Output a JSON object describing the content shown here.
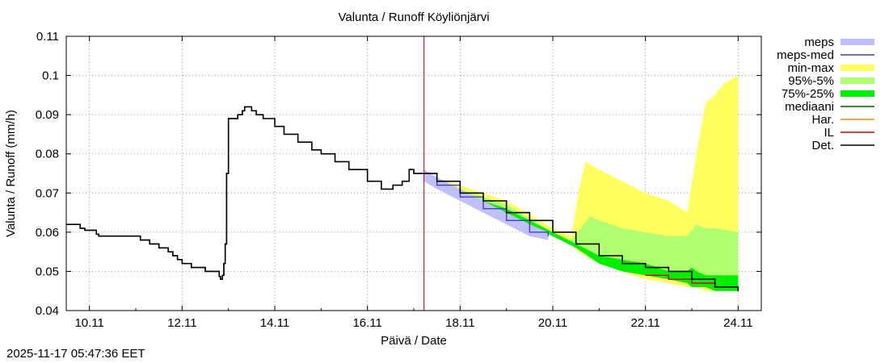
{
  "chart_data": {
    "type": "area",
    "title": "Valunta / Runoff  Köyliönjärvi",
    "xlabel": "Päivä / Date",
    "ylabel": "Valunta / Runoff (mm/h)",
    "x_unit": "days since 10.11 00:00",
    "xlim": [
      -0.5,
      14.5
    ],
    "ylim": [
      0.04,
      0.11
    ],
    "y_ticks": [
      {
        "v": 0.04,
        "label": "0.04"
      },
      {
        "v": 0.05,
        "label": "0.05"
      },
      {
        "v": 0.06,
        "label": "0.06"
      },
      {
        "v": 0.07,
        "label": "0.07"
      },
      {
        "v": 0.08,
        "label": "0.08"
      },
      {
        "v": 0.09,
        "label": "0.09"
      },
      {
        "v": 0.1,
        "label": "0.1"
      },
      {
        "v": 0.11,
        "label": "0.11"
      }
    ],
    "x_ticks": [
      {
        "v": 0,
        "label": "10.11"
      },
      {
        "v": 2,
        "label": "12.11"
      },
      {
        "v": 4,
        "label": "14.11"
      },
      {
        "v": 6,
        "label": "16.11"
      },
      {
        "v": 8,
        "label": "18.11"
      },
      {
        "v": 10,
        "label": "20.11"
      },
      {
        "v": 12,
        "label": "22.11"
      },
      {
        "v": 14,
        "label": "24.11"
      }
    ],
    "grid": true,
    "forecast_start": 7.22,
    "legend": [
      {
        "label": "meps",
        "color": "#c0c0ff",
        "style": "band"
      },
      {
        "label": "meps-med",
        "color": "#4040c0",
        "style": "line"
      },
      {
        "label": "min-max",
        "color": "#ffff60",
        "style": "band"
      },
      {
        "label": "95%-5%",
        "color": "#b0ff70",
        "style": "band"
      },
      {
        "label": "75%-25%",
        "color": "#00ee00",
        "style": "band"
      },
      {
        "label": "mediaani",
        "color": "#006400",
        "style": "line"
      },
      {
        "label": "Har.",
        "color": "#ff8c00",
        "style": "line"
      },
      {
        "label": "IL",
        "color": "#dd0000",
        "style": "line"
      },
      {
        "label": "Det.",
        "color": "#000000",
        "style": "line"
      }
    ],
    "series": [
      {
        "name": "Det.",
        "x": [
          -0.5,
          -0.2,
          -0.1,
          0.15,
          0.2,
          1.0,
          1.1,
          1.3,
          1.5,
          1.7,
          1.8,
          1.9,
          2.0,
          2.2,
          2.3,
          2.5,
          2.7,
          2.8,
          2.83,
          2.87,
          2.9,
          2.93,
          2.96,
          3.0,
          3.05,
          3.08,
          3.2,
          3.3,
          3.35,
          3.4,
          3.5,
          3.6,
          3.75,
          4.0,
          4.2,
          4.5,
          4.8,
          5.0,
          5.3,
          5.6,
          6.0,
          6.3,
          6.45,
          6.55,
          6.75,
          6.9,
          7.0,
          7.22,
          7.5,
          8.0,
          8.5,
          9.0,
          9.5,
          10.0,
          10.5,
          11.0,
          11.5,
          12.0,
          12.5,
          13.0,
          13.5,
          14.0
        ],
        "y": [
          0.062,
          0.061,
          0.0605,
          0.0595,
          0.059,
          0.059,
          0.058,
          0.057,
          0.056,
          0.055,
          0.054,
          0.053,
          0.052,
          0.051,
          0.051,
          0.05,
          0.05,
          0.0487,
          0.048,
          0.049,
          0.052,
          0.057,
          0.075,
          0.089,
          0.089,
          0.089,
          0.09,
          0.091,
          0.092,
          0.092,
          0.091,
          0.09,
          0.089,
          0.087,
          0.085,
          0.083,
          0.081,
          0.08,
          0.078,
          0.076,
          0.073,
          0.071,
          0.071,
          0.072,
          0.073,
          0.076,
          0.075,
          0.075,
          0.073,
          0.07,
          0.068,
          0.065,
          0.063,
          0.06,
          0.057,
          0.054,
          0.052,
          0.051,
          0.05,
          0.048,
          0.046,
          0.045
        ]
      },
      {
        "name": "min-max",
        "x": [
          7.22,
          8.0,
          9.0,
          10.0,
          10.4,
          10.55,
          10.7,
          11.0,
          11.5,
          12.0,
          12.5,
          12.9,
          13.1,
          13.3,
          13.5,
          13.7,
          14.0
        ],
        "upper": [
          0.075,
          0.072,
          0.068,
          0.061,
          0.059,
          0.07,
          0.078,
          0.076,
          0.073,
          0.07,
          0.068,
          0.065,
          0.08,
          0.093,
          0.095,
          0.098,
          0.1
        ],
        "lower": [
          0.074,
          0.068,
          0.064,
          0.059,
          0.057,
          0.055,
          0.054,
          0.052,
          0.05,
          0.048,
          0.047,
          0.046,
          0.046,
          0.045,
          0.045,
          0.045,
          0.045
        ]
      },
      {
        "name": "95%-5%",
        "x": [
          7.22,
          8.0,
          9.0,
          10.0,
          10.4,
          10.6,
          10.8,
          11.0,
          11.5,
          12.0,
          12.5,
          12.9,
          13.1,
          13.3,
          13.5,
          14.0
        ],
        "upper": [
          0.075,
          0.071,
          0.067,
          0.06,
          0.058,
          0.061,
          0.064,
          0.063,
          0.061,
          0.06,
          0.059,
          0.059,
          0.062,
          0.061,
          0.061,
          0.06
        ],
        "lower": [
          0.074,
          0.068,
          0.064,
          0.059,
          0.057,
          0.055,
          0.054,
          0.053,
          0.051,
          0.049,
          0.048,
          0.047,
          0.046,
          0.046,
          0.046,
          0.045
        ]
      },
      {
        "name": "75%-25%",
        "x": [
          7.22,
          8.0,
          9.0,
          10.0,
          10.5,
          11.0,
          11.5,
          12.0,
          12.5,
          12.9,
          13.0,
          13.1,
          13.3,
          13.5,
          14.0
        ],
        "upper": [
          0.075,
          0.07,
          0.066,
          0.06,
          0.057,
          0.054,
          0.053,
          0.052,
          0.05,
          0.05,
          0.051,
          0.05,
          0.049,
          0.049,
          0.049
        ],
        "lower": [
          0.074,
          0.069,
          0.065,
          0.059,
          0.056,
          0.052,
          0.05,
          0.049,
          0.048,
          0.047,
          0.046,
          0.046,
          0.046,
          0.045,
          0.045
        ]
      },
      {
        "name": "meps",
        "x": [
          7.22,
          7.5,
          8.0,
          8.5,
          9.0,
          9.5,
          9.9
        ],
        "upper": [
          0.076,
          0.074,
          0.071,
          0.068,
          0.065,
          0.062,
          0.06
        ],
        "lower": [
          0.073,
          0.071,
          0.068,
          0.065,
          0.062,
          0.059,
          0.058
        ]
      },
      {
        "name": "meps-med",
        "x": [
          6.9,
          7.0,
          7.22,
          7.5,
          8.0,
          8.5,
          9.0,
          9.5,
          9.9
        ],
        "y": [
          0.076,
          0.075,
          0.075,
          0.072,
          0.069,
          0.066,
          0.063,
          0.06,
          0.059
        ]
      },
      {
        "name": "mediaani",
        "x": [
          -0.5,
          -0.2,
          -0.1,
          0.15,
          0.2,
          1.0,
          1.1,
          1.3,
          1.5,
          1.7,
          1.8,
          1.9,
          2.0,
          2.2,
          2.3,
          2.5,
          2.7,
          2.8,
          2.83,
          2.87,
          2.9,
          2.93,
          2.96,
          3.0,
          3.05,
          3.08,
          3.2,
          3.3
        ],
        "y": [
          0.062,
          0.061,
          0.0605,
          0.0595,
          0.059,
          0.059,
          0.058,
          0.057,
          0.056,
          0.055,
          0.054,
          0.053,
          0.052,
          0.051,
          0.051,
          0.05,
          0.05,
          0.0487,
          0.048,
          0.049,
          0.052,
          0.057,
          0.075,
          0.089,
          0.089,
          0.089,
          0.09,
          0.091
        ]
      },
      {
        "name": "IL",
        "x": [
          12.0,
          12.5,
          13.0,
          13.5,
          14.0
        ],
        "y": [
          0.049,
          0.048,
          0.047,
          0.046,
          0.046
        ]
      }
    ]
  },
  "footer": {
    "timestamp": "2025-11-17 05:47:36 EET"
  }
}
